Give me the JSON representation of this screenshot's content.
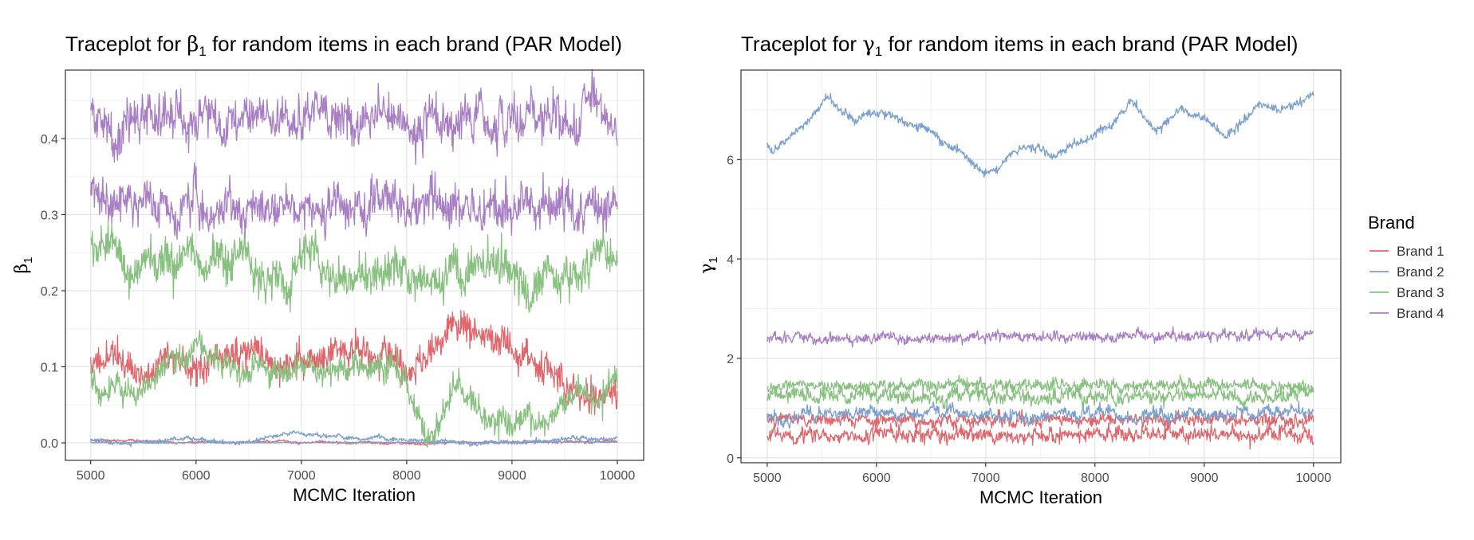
{
  "chart_data": [
    {
      "type": "line",
      "title": "Traceplot for β₁ for random items in each brand (PAR Model)",
      "title_prefix": "Traceplot for ",
      "title_symbol": "β",
      "title_sub": "1",
      "title_suffix": " for random items in each brand (PAR Model)",
      "xlabel": "MCMC Iteration",
      "ylabel_symbol": "β",
      "ylabel_sub": "1",
      "xlim": [
        4760,
        10250
      ],
      "ylim": [
        -0.023,
        0.49
      ],
      "xticks": [
        5000,
        6000,
        7000,
        8000,
        9000,
        10000
      ],
      "yticks": [
        0.0,
        0.1,
        0.2,
        0.3,
        0.4
      ],
      "ytick_labels": [
        "0.0",
        "0.1",
        "0.2",
        "0.3",
        "0.4"
      ],
      "grid": true,
      "series": [
        {
          "name": "Brand 1",
          "color": "#E0666B",
          "trace": {
            "mean": 0.104,
            "sd": 0.013,
            "ar": 0.988,
            "noise": 0.01,
            "seed": 11,
            "anchors": [
              [
                5000,
                0.1
              ],
              [
                5200,
                0.12
              ],
              [
                5500,
                0.085
              ],
              [
                5700,
                0.115
              ],
              [
                6000,
                0.105
              ],
              [
                6500,
                0.12
              ],
              [
                7000,
                0.105
              ],
              [
                7500,
                0.11
              ],
              [
                8000,
                0.095
              ],
              [
                8300,
                0.125
              ],
              [
                8600,
                0.14
              ],
              [
                8900,
                0.105
              ],
              [
                9300,
                0.1
              ],
              [
                9600,
                0.08
              ],
              [
                10000,
                0.075
              ]
            ]
          }
        },
        {
          "name": "Brand 1",
          "color": "#E0666B",
          "trace": {
            "mean": 0.002,
            "sd": 0.0008,
            "ar": 0.95,
            "noise": 0.0008,
            "seed": 12,
            "anchors": [
              [
                5000,
                0.004
              ],
              [
                5400,
                0.003
              ],
              [
                5800,
                0.001
              ],
              [
                6500,
                0.001
              ],
              [
                7500,
                0.0005
              ],
              [
                10000,
                0.0005
              ]
            ]
          }
        },
        {
          "name": "Brand 2",
          "color": "#7AA0CF",
          "trace": {
            "mean": 0.004,
            "sd": 0.003,
            "ar": 0.99,
            "noise": 0.0012,
            "seed": 21,
            "anchors": [
              [
                5000,
                0.003
              ],
              [
                5800,
                0.006
              ],
              [
                6500,
                0.005
              ],
              [
                7000,
                0.013
              ],
              [
                7500,
                0.006
              ],
              [
                8000,
                0.003
              ],
              [
                8500,
                0.004
              ],
              [
                9000,
                0.004
              ],
              [
                9500,
                0.01
              ],
              [
                10000,
                0.007
              ]
            ]
          }
        },
        {
          "name": "Brand 2",
          "color": "#7AA0CF",
          "trace": {
            "mean": 0.0002,
            "sd": 0.0002,
            "ar": 0.9,
            "noise": 0.0002,
            "seed": 22,
            "anchors": [
              [
                5000,
                0.0
              ],
              [
                10000,
                0.001
              ]
            ]
          }
        },
        {
          "name": "Brand 3",
          "color": "#87C07F",
          "trace": {
            "mean": 0.235,
            "sd": 0.015,
            "ar": 0.96,
            "noise": 0.012,
            "seed": 31,
            "anchors": [
              [
                5000,
                0.25
              ],
              [
                5400,
                0.235
              ],
              [
                6300,
                0.225
              ],
              [
                7000,
                0.24
              ],
              [
                7600,
                0.235
              ],
              [
                8000,
                0.245
              ],
              [
                8300,
                0.225
              ],
              [
                8800,
                0.24
              ],
              [
                9200,
                0.21
              ],
              [
                9600,
                0.24
              ],
              [
                10000,
                0.24
              ]
            ]
          }
        },
        {
          "name": "Brand 3",
          "color": "#87C07F",
          "trace": {
            "mean": 0.08,
            "sd": 0.015,
            "ar": 0.985,
            "noise": 0.008,
            "seed": 32,
            "anchors": [
              [
                5000,
                0.085
              ],
              [
                5300,
                0.065
              ],
              [
                5600,
                0.045
              ],
              [
                5800,
                0.085
              ],
              [
                6000,
                0.1
              ],
              [
                6500,
                0.07
              ],
              [
                6900,
                0.085
              ],
              [
                7300,
                0.095
              ],
              [
                7900,
                0.08
              ],
              [
                8200,
                0.025
              ],
              [
                8500,
                0.095
              ],
              [
                8800,
                0.04
              ],
              [
                9000,
                0.015
              ],
              [
                9300,
                0.03
              ],
              [
                9600,
                0.07
              ],
              [
                9900,
                0.055
              ],
              [
                10000,
                0.09
              ]
            ]
          }
        },
        {
          "name": "Brand 4",
          "color": "#A87FC4",
          "trace": {
            "mean": 0.424,
            "sd": 0.012,
            "ar": 0.85,
            "noise": 0.012,
            "seed": 41,
            "anchors": [
              [
                5000,
                0.425
              ],
              [
                10000,
                0.425
              ]
            ]
          }
        },
        {
          "name": "Brand 4",
          "color": "#A87FC4",
          "trace": {
            "mean": 0.316,
            "sd": 0.012,
            "ar": 0.85,
            "noise": 0.012,
            "seed": 42,
            "anchors": [
              [
                5000,
                0.315
              ],
              [
                10000,
                0.305
              ]
            ]
          }
        }
      ]
    },
    {
      "type": "line",
      "title": "Traceplot for γ₁ for random items in each brand (PAR Model)",
      "title_prefix": "Traceplot for ",
      "title_symbol": "γ",
      "title_sub": "1",
      "title_suffix": " for random items in each brand (PAR Model)",
      "xlabel": "MCMC Iteration",
      "ylabel_symbol": "γ",
      "ylabel_sub": "1",
      "xlim": [
        4760,
        10250
      ],
      "ylim": [
        -0.1,
        7.8
      ],
      "xticks": [
        5000,
        6000,
        7000,
        8000,
        9000,
        10000
      ],
      "yticks": [
        0,
        2,
        4,
        6
      ],
      "ytick_labels": [
        "0",
        "2",
        "4",
        "6"
      ],
      "grid": true,
      "series": [
        {
          "name": "Brand 1",
          "color": "#E0666B",
          "trace": {
            "mean": 0.76,
            "sd": 0.05,
            "ar": 0.8,
            "noise": 0.05,
            "seed": 51,
            "anchors": [
              [
                5000,
                0.76
              ],
              [
                10000,
                0.76
              ]
            ]
          }
        },
        {
          "name": "Brand 1",
          "color": "#E0666B",
          "trace": {
            "mean": 0.45,
            "sd": 0.06,
            "ar": 0.8,
            "noise": 0.06,
            "seed": 52,
            "anchors": [
              [
                5000,
                0.45
              ],
              [
                10000,
                0.47
              ]
            ]
          }
        },
        {
          "name": "Brand 2",
          "color": "#7AA0CF",
          "trace": {
            "mean": 6.6,
            "sd": 0.06,
            "ar": 0.98,
            "noise": 0.04,
            "seed": 61,
            "anchors": [
              [
                5000,
                6.3
              ],
              [
                5050,
                6.1
              ],
              [
                5300,
                6.6
              ],
              [
                5550,
                7.2
              ],
              [
                5800,
                6.8
              ],
              [
                6050,
                7.0
              ],
              [
                6400,
                6.6
              ],
              [
                6800,
                6.2
              ],
              [
                6950,
                5.85
              ],
              [
                7100,
                5.95
              ],
              [
                7400,
                6.3
              ],
              [
                7600,
                6.05
              ],
              [
                7800,
                6.3
              ],
              [
                8000,
                6.4
              ],
              [
                8150,
                6.7
              ],
              [
                8330,
                7.2
              ],
              [
                8550,
                6.6
              ],
              [
                8800,
                7.0
              ],
              [
                9000,
                6.75
              ],
              [
                9200,
                6.5
              ],
              [
                9500,
                7.1
              ],
              [
                9700,
                6.95
              ],
              [
                9850,
                7.1
              ],
              [
                10000,
                7.35
              ]
            ]
          }
        },
        {
          "name": "Brand 2",
          "color": "#7AA0CF",
          "trace": {
            "mean": 0.85,
            "sd": 0.06,
            "ar": 0.9,
            "noise": 0.05,
            "seed": 62,
            "anchors": [
              [
                5000,
                0.78
              ],
              [
                5500,
                0.85
              ],
              [
                6000,
                0.9
              ],
              [
                7000,
                0.85
              ],
              [
                8000,
                0.88
              ],
              [
                9000,
                0.85
              ],
              [
                10000,
                0.9
              ]
            ]
          }
        },
        {
          "name": "Brand 3",
          "color": "#87C07F",
          "trace": {
            "mean": 1.42,
            "sd": 0.05,
            "ar": 0.85,
            "noise": 0.05,
            "seed": 71,
            "anchors": [
              [
                5000,
                1.45
              ],
              [
                10000,
                1.45
              ]
            ]
          }
        },
        {
          "name": "Brand 3",
          "color": "#87C07F",
          "trace": {
            "mean": 1.22,
            "sd": 0.06,
            "ar": 0.85,
            "noise": 0.06,
            "seed": 72,
            "anchors": [
              [
                5000,
                1.25
              ],
              [
                10000,
                1.25
              ]
            ]
          }
        },
        {
          "name": "Brand 4",
          "color": "#A87FC4",
          "trace": {
            "mean": 2.43,
            "sd": 0.04,
            "ar": 0.75,
            "noise": 0.04,
            "seed": 81,
            "anchors": [
              [
                5000,
                2.4
              ],
              [
                10000,
                2.47
              ]
            ]
          }
        }
      ]
    }
  ],
  "legend": {
    "title": "Brand",
    "placement": "right",
    "items": [
      {
        "label": "Brand 1",
        "color": "#E0666B"
      },
      {
        "label": "Brand 2",
        "color": "#7AA0CF"
      },
      {
        "label": "Brand 3",
        "color": "#87C07F"
      },
      {
        "label": "Brand 4",
        "color": "#A87FC4"
      }
    ]
  }
}
